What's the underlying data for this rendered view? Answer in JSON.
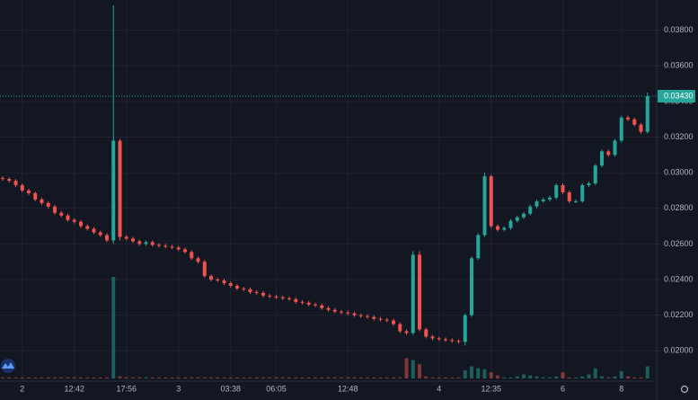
{
  "chart_data": {
    "type": "candlestick",
    "up_color": "#26a69a",
    "down_color": "#ef5350",
    "grid": true,
    "ylim": [
      0.0185,
      0.0397
    ],
    "yticks": [
      {
        "value": 0.02,
        "label": "0.02000"
      },
      {
        "value": 0.022,
        "label": "0.02200"
      },
      {
        "value": 0.024,
        "label": "0.02400"
      },
      {
        "value": 0.026,
        "label": "0.02600"
      },
      {
        "value": 0.028,
        "label": "0.02800"
      },
      {
        "value": 0.03,
        "label": "0.03000"
      },
      {
        "value": 0.032,
        "label": "0.03200"
      },
      {
        "value": 0.034,
        "label": "0.03400"
      },
      {
        "value": 0.036,
        "label": "0.03600"
      },
      {
        "value": 0.038,
        "label": "0.03800"
      }
    ],
    "last_price": {
      "value": 0.0343,
      "label": "0.03430"
    },
    "categories": [
      null,
      null,
      null,
      "2",
      null,
      null,
      null,
      null,
      null,
      null,
      null,
      "12:42",
      null,
      null,
      null,
      null,
      null,
      null,
      null,
      "17:56",
      null,
      null,
      null,
      null,
      null,
      null,
      null,
      "3",
      null,
      null,
      null,
      null,
      null,
      null,
      null,
      "03:38",
      null,
      null,
      null,
      null,
      null,
      null,
      "06:05",
      null,
      null,
      null,
      null,
      null,
      null,
      null,
      null,
      null,
      null,
      "12:48",
      null,
      null,
      null,
      null,
      null,
      null,
      null,
      null,
      null,
      null,
      null,
      null,
      null,
      "4",
      null,
      null,
      null,
      null,
      null,
      null,
      null,
      "12:35",
      null,
      null,
      null,
      null,
      null,
      null,
      null,
      null,
      null,
      null,
      "6",
      null,
      null,
      null,
      null,
      null,
      null,
      null,
      null,
      "8",
      null,
      null,
      null,
      null
    ],
    "open": [
      0.0297,
      0.02965,
      0.02955,
      0.0293,
      0.029,
      0.02885,
      0.0285,
      0.0283,
      0.0281,
      0.02775,
      0.0276,
      0.02735,
      0.02725,
      0.027,
      0.02685,
      0.02665,
      0.0265,
      0.0262,
      0.0318,
      0.0264,
      0.0263,
      0.02615,
      0.026,
      0.0261,
      0.02595,
      0.0259,
      0.02585,
      0.0258,
      0.0257,
      0.02555,
      0.0252,
      0.025,
      0.0242,
      0.024,
      0.02395,
      0.0238,
      0.02365,
      0.0235,
      0.02345,
      0.0233,
      0.02325,
      0.0231,
      0.02305,
      0.023,
      0.02295,
      0.0229,
      0.02275,
      0.0227,
      0.0226,
      0.02255,
      0.0224,
      0.0223,
      0.0222,
      0.02215,
      0.0221,
      0.022,
      0.02195,
      0.0219,
      0.0218,
      0.02175,
      0.0217,
      0.0215,
      0.0211,
      0.021,
      0.0254,
      0.0212,
      0.0208,
      0.0207,
      0.02065,
      0.0206,
      0.02055,
      0.0205,
      0.022,
      0.0252,
      0.0265,
      0.0298,
      0.027,
      0.0268,
      0.0269,
      0.0273,
      0.0275,
      0.0277,
      0.0281,
      0.0284,
      0.0285,
      0.0286,
      0.0293,
      0.0289,
      0.0284,
      0.0284,
      0.0293,
      0.0294,
      0.0304,
      0.0312,
      0.031,
      0.0318,
      0.0331,
      0.033,
      0.0327,
      0.0323
    ],
    "high": [
      0.0298,
      0.02975,
      0.02965,
      0.0294,
      0.0291,
      0.02895,
      0.0286,
      0.0284,
      0.0282,
      0.02785,
      0.0277,
      0.02745,
      0.02735,
      0.0271,
      0.02695,
      0.02675,
      0.0266,
      0.0394,
      0.0319,
      0.0265,
      0.0264,
      0.02625,
      0.0262,
      0.0262,
      0.02605,
      0.026,
      0.02595,
      0.0259,
      0.0258,
      0.02565,
      0.0253,
      0.0251,
      0.0243,
      0.0241,
      0.02405,
      0.0239,
      0.02375,
      0.0236,
      0.02355,
      0.0234,
      0.02335,
      0.0232,
      0.02315,
      0.0231,
      0.02305,
      0.023,
      0.02285,
      0.0228,
      0.0227,
      0.02265,
      0.0225,
      0.0224,
      0.0223,
      0.02225,
      0.0222,
      0.0221,
      0.02205,
      0.022,
      0.0219,
      0.02185,
      0.0218,
      0.0216,
      0.0212,
      0.0256,
      0.0256,
      0.0213,
      0.0209,
      0.0208,
      0.02075,
      0.0207,
      0.02065,
      0.0221,
      0.0253,
      0.0266,
      0.03,
      0.0299,
      0.0271,
      0.027,
      0.0274,
      0.0276,
      0.0278,
      0.0282,
      0.0285,
      0.0286,
      0.0287,
      0.0294,
      0.0294,
      0.029,
      0.0285,
      0.0294,
      0.0295,
      0.0305,
      0.0313,
      0.0313,
      0.0319,
      0.0332,
      0.0332,
      0.0331,
      0.0328,
      0.0345
    ],
    "low": [
      0.02955,
      0.02945,
      0.0292,
      0.0289,
      0.02875,
      0.0284,
      0.0282,
      0.028,
      0.02765,
      0.0275,
      0.02725,
      0.02715,
      0.0269,
      0.02675,
      0.02655,
      0.0264,
      0.0261,
      0.026,
      0.0262,
      0.0262,
      0.02605,
      0.0259,
      0.0259,
      0.02585,
      0.0258,
      0.02575,
      0.0257,
      0.0256,
      0.02545,
      0.0251,
      0.0249,
      0.0241,
      0.0239,
      0.02385,
      0.0237,
      0.02355,
      0.0234,
      0.02335,
      0.0232,
      0.02315,
      0.023,
      0.02295,
      0.0229,
      0.02285,
      0.0228,
      0.02265,
      0.0226,
      0.0225,
      0.02245,
      0.0223,
      0.0222,
      0.0221,
      0.02205,
      0.022,
      0.0219,
      0.02185,
      0.0218,
      0.0217,
      0.02165,
      0.0216,
      0.0214,
      0.021,
      0.0209,
      0.0209,
      0.0211,
      0.0207,
      0.0206,
      0.02055,
      0.0205,
      0.02045,
      0.0204,
      0.0203,
      0.0219,
      0.0251,
      0.0264,
      0.0269,
      0.0267,
      0.0267,
      0.0268,
      0.0272,
      0.0274,
      0.0276,
      0.028,
      0.0283,
      0.0284,
      0.0285,
      0.0288,
      0.0283,
      0.0283,
      0.0283,
      0.0292,
      0.0293,
      0.0303,
      0.0309,
      0.0309,
      0.0317,
      0.0329,
      0.0326,
      0.0322,
      0.0322
    ],
    "close": [
      0.02965,
      0.02955,
      0.0293,
      0.029,
      0.02885,
      0.0285,
      0.0283,
      0.0281,
      0.02775,
      0.0276,
      0.02735,
      0.02725,
      0.027,
      0.02685,
      0.02665,
      0.0265,
      0.0262,
      0.0318,
      0.0264,
      0.0263,
      0.02615,
      0.026,
      0.0261,
      0.02595,
      0.0259,
      0.02585,
      0.0258,
      0.0257,
      0.02555,
      0.0252,
      0.025,
      0.0242,
      0.024,
      0.02395,
      0.0238,
      0.02365,
      0.0235,
      0.02345,
      0.0233,
      0.02325,
      0.0231,
      0.02305,
      0.023,
      0.02295,
      0.0229,
      0.02275,
      0.0227,
      0.0226,
      0.02255,
      0.0224,
      0.0223,
      0.0222,
      0.02215,
      0.0221,
      0.022,
      0.02195,
      0.0219,
      0.0218,
      0.02175,
      0.0217,
      0.0215,
      0.0211,
      0.021,
      0.0254,
      0.0212,
      0.0208,
      0.0207,
      0.02065,
      0.0206,
      0.02055,
      0.0205,
      0.022,
      0.0252,
      0.0265,
      0.0298,
      0.027,
      0.0268,
      0.0269,
      0.0273,
      0.0275,
      0.0277,
      0.0281,
      0.0284,
      0.0285,
      0.0286,
      0.0293,
      0.0289,
      0.0284,
      0.0284,
      0.0293,
      0.0294,
      0.0304,
      0.0312,
      0.031,
      0.0318,
      0.0331,
      0.033,
      0.0327,
      0.0323,
      0.0343
    ],
    "volume": [
      1,
      1,
      1,
      1,
      1,
      1,
      1,
      1,
      1,
      1,
      1,
      1,
      1,
      1,
      1,
      1,
      1,
      100,
      2,
      1,
      1,
      1,
      1,
      1,
      1,
      1,
      1,
      1,
      1,
      1,
      1,
      1,
      1,
      1,
      1,
      1,
      1,
      1,
      1,
      1,
      1,
      1,
      1,
      1,
      1,
      1,
      1,
      1,
      1,
      1,
      1,
      1,
      1,
      1,
      1,
      1,
      1,
      1,
      1,
      1,
      1,
      1,
      20,
      18,
      14,
      2,
      1,
      1,
      1,
      1,
      1,
      8,
      12,
      10,
      9,
      6,
      3,
      1,
      1,
      2,
      4,
      3,
      2,
      1,
      1,
      2,
      6,
      1,
      1,
      2,
      4,
      10,
      2,
      1,
      2,
      7,
      2,
      1,
      1,
      12
    ]
  }
}
